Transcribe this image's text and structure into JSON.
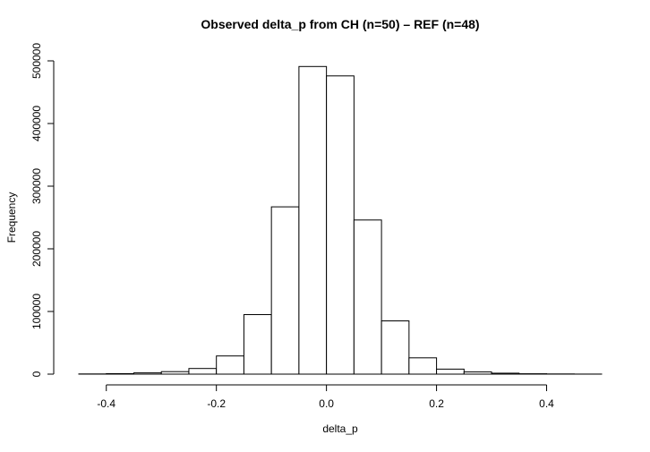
{
  "chart_data": {
    "type": "bar",
    "title": "Observed delta_p from CH (n=50) – REF (n=48)",
    "xlabel": "delta_p",
    "ylabel": "Frequency",
    "xlim": [
      -0.45,
      0.5
    ],
    "ylim": [
      0,
      500000
    ],
    "x_ticks": [
      -0.4,
      -0.2,
      0.0,
      0.2,
      0.4
    ],
    "x_tick_labels": [
      "-0.4",
      "-0.2",
      "0.0",
      "0.2",
      "0.4"
    ],
    "y_ticks": [
      0,
      100000,
      200000,
      300000,
      400000,
      500000
    ],
    "y_tick_labels": [
      "0",
      "100000",
      "200000",
      "300000",
      "400000",
      "500000"
    ],
    "bin_edges": [
      -0.45,
      -0.4,
      -0.35,
      -0.3,
      -0.25,
      -0.2,
      -0.15,
      -0.1,
      -0.05,
      0.0,
      0.05,
      0.1,
      0.15,
      0.2,
      0.25,
      0.3,
      0.35,
      0.4,
      0.45,
      0.5
    ],
    "values": [
      300,
      800,
      2000,
      4000,
      9000,
      29000,
      95000,
      267000,
      491000,
      476000,
      246000,
      85000,
      26000,
      8000,
      3500,
      1500,
      600,
      300,
      100
    ],
    "grid": false,
    "legend": "none"
  }
}
